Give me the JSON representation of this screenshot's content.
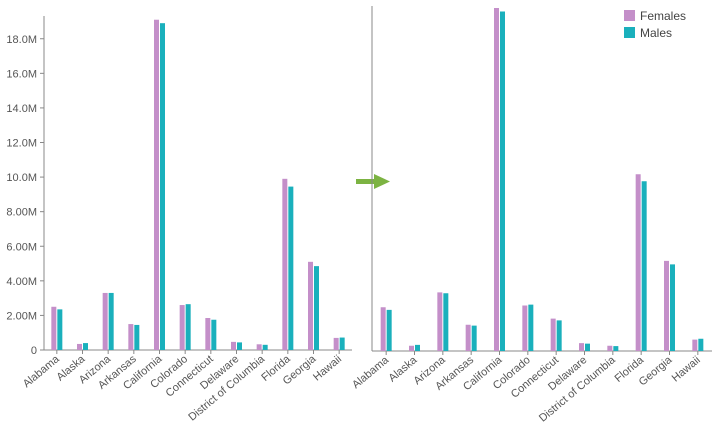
{
  "chart_data": [
    {
      "type": "bar",
      "categories": [
        "Alabama",
        "Alaska",
        "Arizona",
        "Arkansas",
        "California",
        "Colorado",
        "Connecticut",
        "Delaware",
        "District of Columbia",
        "Florida",
        "Georgia",
        "Hawaii"
      ],
      "series": [
        {
          "values": [
            2.5,
            0.35,
            3.3,
            1.5,
            19.1,
            2.6,
            1.85,
            0.47,
            0.33,
            9.9,
            5.1,
            0.7
          ]
        },
        {
          "values": [
            2.35,
            0.4,
            3.3,
            1.45,
            18.9,
            2.65,
            1.75,
            0.44,
            0.3,
            9.45,
            4.85,
            0.72
          ]
        }
      ],
      "ylim": [
        0,
        19.2
      ],
      "y_ticks": [
        0,
        2,
        4,
        6,
        8,
        10,
        12,
        14,
        16,
        18
      ],
      "y_tick_labels": [
        "0",
        "2.00M",
        "4.00M",
        "6.00M",
        "8.00M",
        "10.0M",
        "12.0M",
        "14.0M",
        "16.0M",
        "18.0M"
      ],
      "colors": [
        "#c48fc9",
        "#1ab0bc"
      ],
      "legend": false,
      "grid": false
    },
    {
      "type": "bar",
      "categories": [
        "Alabama",
        "Alaska",
        "Arizona",
        "Arkansas",
        "California",
        "Colorado",
        "Connecticut",
        "Delaware",
        "District of Columbia",
        "Florida",
        "Georgia",
        "Hawaii"
      ],
      "series": [
        {
          "name": "Females",
          "values": [
            2.5,
            0.3,
            3.35,
            1.5,
            19.6,
            2.6,
            1.85,
            0.45,
            0.3,
            10.1,
            5.15,
            0.65
          ]
        },
        {
          "name": "Males",
          "values": [
            2.35,
            0.35,
            3.3,
            1.45,
            19.4,
            2.65,
            1.75,
            0.42,
            0.28,
            9.7,
            4.95,
            0.7
          ]
        }
      ],
      "ylim": [
        0,
        19.6
      ],
      "colors": [
        "#c48fc9",
        "#1ab0bc"
      ],
      "legend": true,
      "legend_position": "top-right",
      "y_axis_labels_visible": false,
      "grid": false
    }
  ],
  "transition_arrow": {
    "icon": "arrow-right-icon",
    "color": "#7cb342"
  }
}
